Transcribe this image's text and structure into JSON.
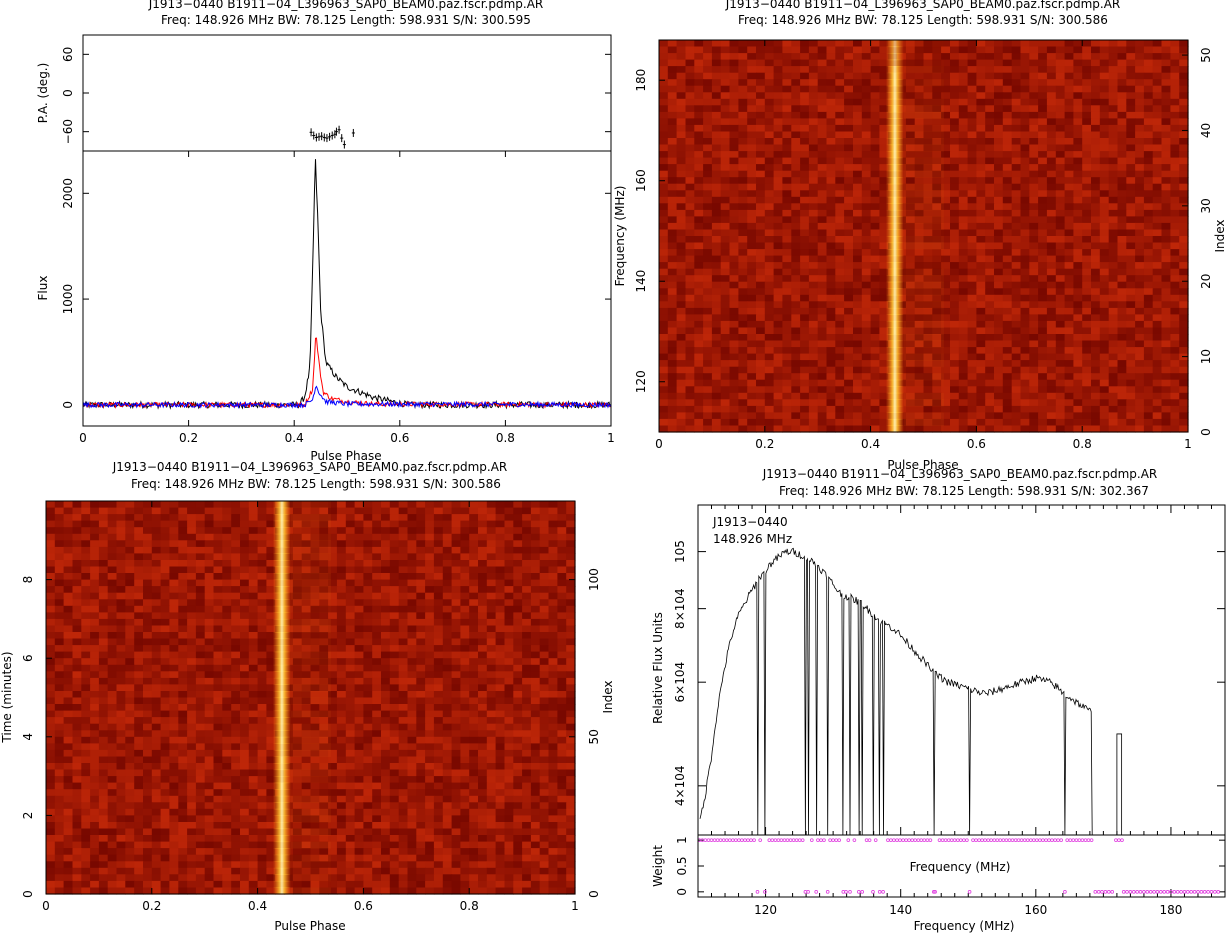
{
  "panels": {
    "profile": {
      "title1": "J1913−0440 B1911−04_L396963_SAP0_BEAM0.paz.fscr.pdmp.AR",
      "title2": "Freq: 148.926 MHz BW: 78.125 Length: 598.931 S/N: 300.595",
      "pa_ylabel": "P.A. (deg.)",
      "flux_ylabel": "Flux",
      "xlabel": "Pulse Phase"
    },
    "freq_phase": {
      "title1": "J1913−0440 B1911−04_L396963_SAP0_BEAM0.paz.fscr.pdmp.AR",
      "title2": "Freq: 148.926 MHz BW: 78.125 Length: 598.931 S/N: 300.586",
      "ylabel": "Frequency (MHz)",
      "y2label": "Index",
      "xlabel": "Pulse Phase"
    },
    "time_phase": {
      "title1": "J1913−0440 B1911−04_L396963_SAP0_BEAM0.paz.fscr.pdmp.AR",
      "title2": "Freq: 148.926 MHz BW: 78.125 Length: 598.931 S/N: 300.586",
      "ylabel": "Time (minutes)",
      "y2label": "Index",
      "xlabel": "Pulse Phase"
    },
    "spectrum": {
      "title1": "J1913−0440 B1911−04_L396963_SAP0_BEAM0.paz.fscr.pdmp.AR",
      "title2": "Freq: 148.926 MHz BW: 78.125 Length: 598.931 S/N: 302.367",
      "legend1": "J1913−0440",
      "legend2": "148.926 MHz",
      "ylabel": "Relative Flux Units",
      "weight_ylabel": "Weight",
      "inner_xlabel": "Frequency (MHz)",
      "xlabel": "Frequency (MHz)"
    }
  },
  "chart_data": [
    {
      "type": "line",
      "name": "polarization-angle",
      "xlim": [
        0,
        1
      ],
      "ylim": [
        -90,
        90
      ],
      "yticks": [
        "60",
        "0",
        "−60"
      ],
      "points": [
        [
          0.432,
          -61
        ],
        [
          0.437,
          -66
        ],
        [
          0.442,
          -69
        ],
        [
          0.447,
          -68
        ],
        [
          0.452,
          -67
        ],
        [
          0.457,
          -69
        ],
        [
          0.462,
          -70
        ],
        [
          0.467,
          -68
        ],
        [
          0.472,
          -66
        ],
        [
          0.477,
          -64
        ],
        [
          0.48,
          -60
        ],
        [
          0.485,
          -57
        ],
        [
          0.49,
          -70
        ],
        [
          0.495,
          -80
        ],
        [
          0.512,
          -62
        ]
      ]
    },
    {
      "type": "line",
      "name": "pulse-profile",
      "xlim": [
        0,
        1
      ],
      "ylim": [
        -200,
        2400
      ],
      "xticks": [
        "0",
        "0.2",
        "0.4",
        "0.6",
        "0.8",
        "1"
      ],
      "yticks": [
        "2000",
        "1000",
        "0"
      ],
      "series": [
        {
          "color": "#000000",
          "values": [
            [
              0,
              0
            ],
            [
              0.41,
              0
            ],
            [
              0.42,
              80
            ],
            [
              0.43,
              350
            ],
            [
              0.436,
              1500
            ],
            [
              0.44,
              2350
            ],
            [
              0.445,
              1700
            ],
            [
              0.45,
              900
            ],
            [
              0.46,
              400
            ],
            [
              0.48,
              260
            ],
            [
              0.5,
              170
            ],
            [
              0.55,
              70
            ],
            [
              0.6,
              15
            ],
            [
              0.62,
              0
            ],
            [
              1,
              0
            ]
          ]
        },
        {
          "color": "#ff0000",
          "values": [
            [
              0,
              0
            ],
            [
              0.42,
              0
            ],
            [
              0.435,
              150
            ],
            [
              0.441,
              680
            ],
            [
              0.448,
              350
            ],
            [
              0.455,
              120
            ],
            [
              0.47,
              60
            ],
            [
              0.5,
              30
            ],
            [
              0.55,
              8
            ],
            [
              1,
              0
            ]
          ]
        },
        {
          "color": "#0000ff",
          "values": [
            [
              0,
              0
            ],
            [
              0.42,
              0
            ],
            [
              0.435,
              50
            ],
            [
              0.441,
              190
            ],
            [
              0.448,
              110
            ],
            [
              0.46,
              30
            ],
            [
              0.5,
              8
            ],
            [
              1,
              0
            ]
          ]
        }
      ]
    },
    {
      "type": "heatmap",
      "name": "frequency-vs-phase",
      "xlim": [
        0,
        1
      ],
      "ylim": [
        110,
        188
      ],
      "xticks": [
        "0",
        "0.2",
        "0.4",
        "0.6",
        "0.8",
        "1"
      ],
      "yticks": [
        "120",
        "140",
        "160",
        "180"
      ],
      "y2lim": [
        0,
        52
      ],
      "y2ticks": [
        "0",
        "10",
        "20",
        "30",
        "40",
        "50"
      ],
      "pulse_phase": 0.446
    },
    {
      "type": "heatmap",
      "name": "time-vs-phase",
      "xlim": [
        0,
        1
      ],
      "ylim": [
        0,
        10
      ],
      "xticks": [
        "0",
        "0.2",
        "0.4",
        "0.6",
        "0.8",
        "1"
      ],
      "yticks": [
        "0",
        "2",
        "4",
        "6",
        "8"
      ],
      "y2lim": [
        0,
        125
      ],
      "y2ticks": [
        "0",
        "50",
        "100"
      ],
      "pulse_phase": 0.446
    },
    {
      "type": "line",
      "name": "bandpass-spectrum",
      "xlim": [
        110,
        188
      ],
      "ylog": true,
      "ytick_labels": [
        "10^5",
        "8×10^4",
        "6×10^4",
        "4×10^4"
      ],
      "yticks": [
        100000,
        80000,
        60000,
        40000
      ],
      "ylim": [
        33000,
        120000
      ],
      "xticks": [
        "120",
        "140",
        "160",
        "180"
      ],
      "envelope": [
        [
          110.3,
          35000
        ],
        [
          111,
          38000
        ],
        [
          112,
          45000
        ],
        [
          113,
          55000
        ],
        [
          114,
          64000
        ],
        [
          115,
          72000
        ],
        [
          116,
          78000
        ],
        [
          117,
          82000
        ],
        [
          118,
          86000
        ],
        [
          119,
          90000
        ],
        [
          120,
          93000
        ],
        [
          121,
          96000
        ],
        [
          122,
          98000
        ],
        [
          123,
          100000
        ],
        [
          124,
          100000
        ],
        [
          125,
          99000
        ],
        [
          126,
          98000
        ],
        [
          127,
          96000
        ],
        [
          128,
          94000
        ],
        [
          129,
          91000
        ],
        [
          130,
          88000
        ],
        [
          131,
          85000
        ],
        [
          132,
          84000
        ],
        [
          133,
          83000
        ],
        [
          134,
          82000
        ],
        [
          135,
          80000
        ],
        [
          136,
          78000
        ],
        [
          137,
          76000
        ],
        [
          138,
          75000
        ],
        [
          139,
          74000
        ],
        [
          140,
          72000
        ],
        [
          141,
          70000
        ],
        [
          142,
          68000
        ],
        [
          143,
          66000
        ],
        [
          144,
          64000
        ],
        [
          145,
          62000
        ],
        [
          146,
          61000
        ],
        [
          147,
          60000
        ],
        [
          148,
          59500
        ],
        [
          149,
          59000
        ],
        [
          150,
          58500
        ],
        [
          151,
          58000
        ],
        [
          152,
          57500
        ],
        [
          153,
          57500
        ],
        [
          154,
          58000
        ],
        [
          155,
          58500
        ],
        [
          156,
          59000
        ],
        [
          157,
          59500
        ],
        [
          158,
          60000
        ],
        [
          159,
          60500
        ],
        [
          160,
          61000
        ],
        [
          161,
          60500
        ],
        [
          162,
          60000
        ],
        [
          163,
          59000
        ],
        [
          164,
          57500
        ],
        [
          165,
          56500
        ],
        [
          166,
          55500
        ],
        [
          167,
          54500
        ],
        [
          168,
          53500
        ],
        [
          168.4,
          53500
        ]
      ],
      "dropouts": [
        118.8,
        119.9,
        125.9,
        126.3,
        127.5,
        129.2,
        131.5,
        132.5,
        133.8,
        134.3,
        135.9,
        136.9,
        137.4,
        144.9,
        150.2,
        164.3,
        168.4
      ],
      "island": {
        "from": 172.0,
        "to": 172.7,
        "value": 49000
      }
    },
    {
      "type": "scatter",
      "name": "channel-weights",
      "xlim": [
        110,
        188
      ],
      "ylim": [
        -0.1,
        1.1
      ],
      "yticks": [
        "0",
        "0.5",
        "1"
      ],
      "zero_weight_channels": [
        118.8,
        119.9,
        125.9,
        126.3,
        127.5,
        129.2,
        131.5,
        131.9,
        132.5,
        133.8,
        134.3,
        135.9,
        136.9,
        137.4,
        144.9,
        145.1,
        150.2,
        164.3,
        168.8,
        169.3,
        169.8,
        170.3,
        170.8,
        171.3,
        173,
        173.5,
        174,
        174.5,
        175,
        175.5,
        176,
        176.5,
        177,
        177.5,
        178,
        178.5,
        179,
        179.5,
        180,
        180.5,
        181,
        181.5,
        182,
        182.5,
        183,
        183.5,
        184,
        184.5,
        185,
        185.5,
        186,
        186.5,
        187
      ]
    }
  ]
}
